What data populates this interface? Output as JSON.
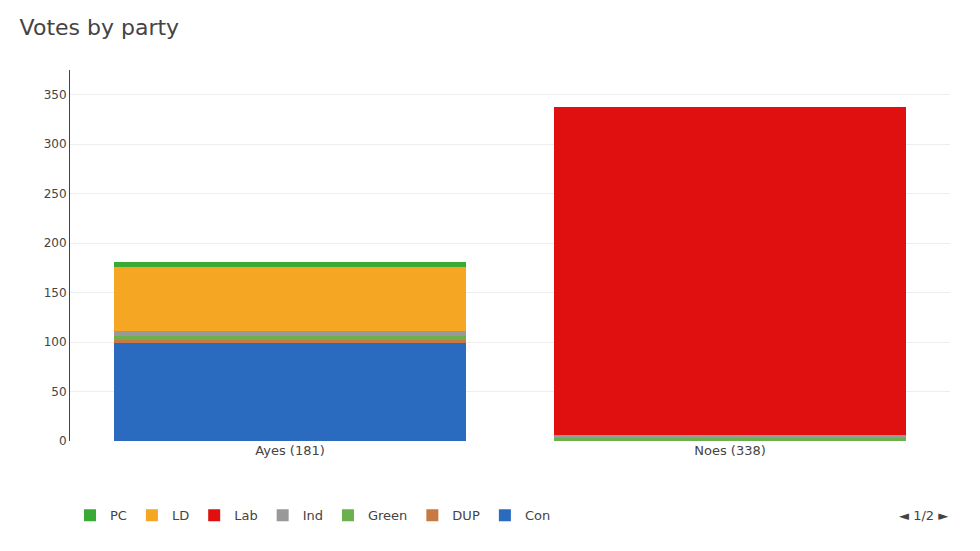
{
  "chart_data": {
    "type": "bar",
    "title": "Votes by party",
    "categories": [
      "Ayes (181)",
      "Noes (338)"
    ],
    "stacked": true,
    "series": [
      {
        "name": "Con",
        "color": "#2a6bbf",
        "values": [
          100,
          0
        ]
      },
      {
        "name": "DUP",
        "color": "#c87941",
        "values": [
          2,
          0
        ]
      },
      {
        "name": "Green",
        "color": "#6ab04c",
        "values": [
          4,
          4
        ]
      },
      {
        "name": "Ind",
        "color": "#999999",
        "values": [
          5,
          2
        ]
      },
      {
        "name": "Lab",
        "color": "#e01010",
        "values": [
          0,
          332
        ]
      },
      {
        "name": "LD",
        "color": "#f5a623",
        "values": [
          65,
          0
        ]
      },
      {
        "name": "PC",
        "color": "#3aaa35",
        "values": [
          5,
          0
        ]
      }
    ],
    "ylim": [
      0,
      375
    ],
    "yticks": [
      0,
      50,
      100,
      150,
      200,
      250,
      300,
      350
    ],
    "grid": true,
    "legend": "bottom",
    "annotations": [
      "◄ 1/2 ►"
    ]
  }
}
